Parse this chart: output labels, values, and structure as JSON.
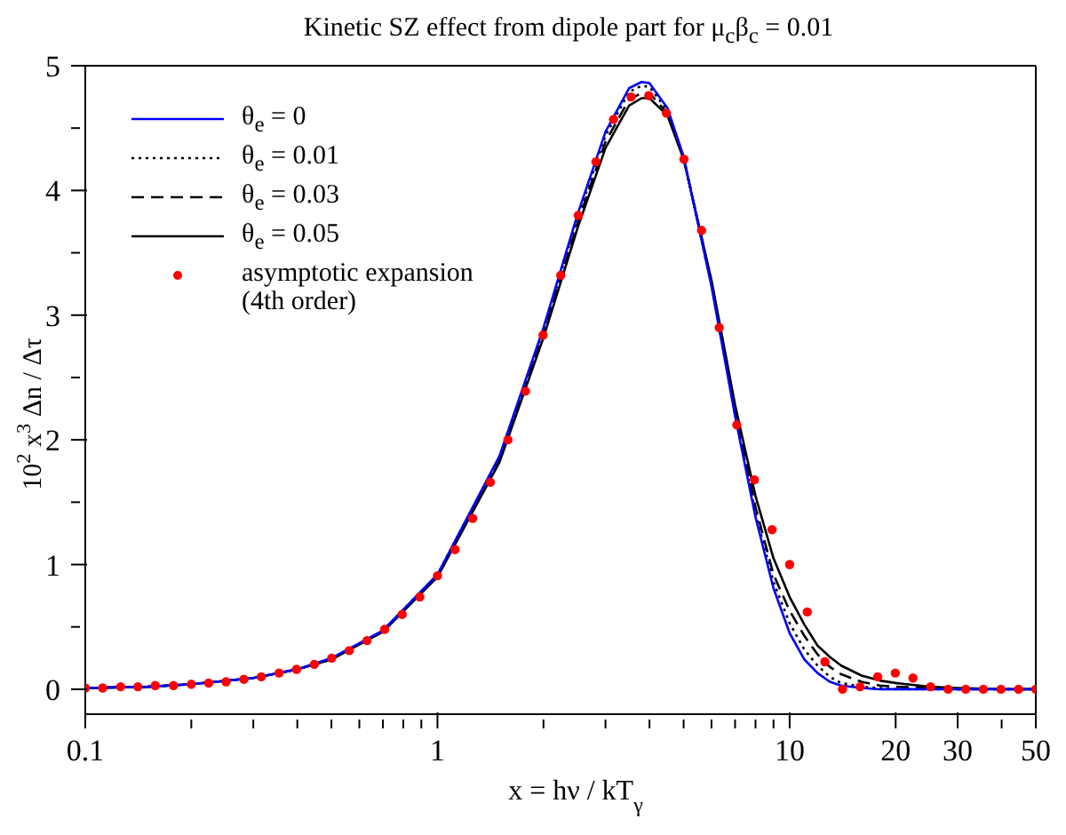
{
  "chart_data": {
    "type": "line",
    "title": "Kinetic SZ effect from dipole part for  μ$_{c}$β$_{c}$ = 0.01",
    "xlabel": "x = hν / kT$_{γ}$",
    "ylabel": "10$^{2}$ x$^{3}$  Δn / Δτ",
    "log": "x",
    "grid": false,
    "legend": "top left",
    "xlim": [
      0.1,
      50
    ],
    "ylim": [
      -0.2,
      5
    ],
    "xticks": [
      0.1,
      {
        "value": 0.2,
        "label": null
      },
      {
        "value": 0.3,
        "label": null
      },
      {
        "value": 0.4,
        "label": null
      },
      {
        "value": 0.5,
        "label": null
      },
      {
        "value": 0.6,
        "label": null
      },
      {
        "value": 0.7,
        "label": null
      },
      {
        "value": 0.8,
        "label": null
      },
      {
        "value": 0.9,
        "label": null
      },
      1,
      {
        "value": 2,
        "label": null
      },
      {
        "value": 3,
        "label": null
      },
      {
        "value": 4,
        "label": null
      },
      {
        "value": 5,
        "label": null
      },
      {
        "value": 6,
        "label": null
      },
      {
        "value": 7,
        "label": null
      },
      {
        "value": 8,
        "label": null
      },
      {
        "value": 9,
        "label": null
      },
      10,
      20,
      30,
      {
        "value": 40,
        "label": null
      },
      50
    ],
    "yticks": [
      0,
      {
        "value": 0.5,
        "label": null
      },
      1,
      {
        "value": 1.5,
        "label": null
      },
      2,
      {
        "value": 2.5,
        "label": null
      },
      3,
      {
        "value": 3.5,
        "label": null
      },
      4,
      {
        "value": 4.5,
        "label": null
      },
      5
    ],
    "x": [
      0.1,
      0.15,
      0.2,
      0.3,
      0.4,
      0.5,
      0.7,
      1,
      1.5,
      2,
      2.5,
      3,
      3.5,
      3.8,
      4,
      4.5,
      5,
      6,
      7,
      8,
      9,
      10,
      11,
      12,
      13,
      14,
      16,
      18,
      20,
      25,
      30,
      40,
      50
    ],
    "series": [
      {
        "name": "θ$_{e}$ = 0",
        "color": "#0000ff",
        "line_style": "solid",
        "values": [
          0.01,
          0.02,
          0.04,
          0.09,
          0.16,
          0.25,
          0.47,
          0.92,
          1.87,
          2.9,
          3.81,
          4.47,
          4.82,
          4.87,
          4.86,
          4.66,
          4.27,
          3.23,
          2.19,
          1.38,
          0.81,
          0.45,
          0.24,
          0.13,
          0.06,
          0.03,
          0.01,
          0,
          0,
          0,
          0,
          0,
          0
        ]
      },
      {
        "name": "θ$_{e}$ = 0.01",
        "color": "#000000",
        "line_style": "dotted",
        "values": [
          0.01,
          0.02,
          0.04,
          0.09,
          0.16,
          0.24,
          0.47,
          0.92,
          1.86,
          2.88,
          3.78,
          4.44,
          4.79,
          4.84,
          4.83,
          4.64,
          4.27,
          3.24,
          2.21,
          1.41,
          0.86,
          0.53,
          0.32,
          0.19,
          0.1,
          0.05,
          0.02,
          0.01,
          0,
          0,
          0,
          0,
          0
        ]
      },
      {
        "name": "θ$_{e}$ = 0.03",
        "color": "#000000",
        "line_style": "dashed",
        "values": [
          0.01,
          0.02,
          0.04,
          0.09,
          0.16,
          0.24,
          0.47,
          0.91,
          1.84,
          2.85,
          3.74,
          4.39,
          4.73,
          4.78,
          4.78,
          4.62,
          4.26,
          3.26,
          2.25,
          1.46,
          0.92,
          0.63,
          0.43,
          0.28,
          0.18,
          0.12,
          0.06,
          0.03,
          0.02,
          0.01,
          0,
          0,
          0
        ]
      },
      {
        "name": "θ$_{e}$ = 0.05",
        "color": "#000000",
        "line_style": "solid",
        "values": [
          0.01,
          0.02,
          0.04,
          0.09,
          0.16,
          0.24,
          0.46,
          0.9,
          1.82,
          2.82,
          3.7,
          4.34,
          4.68,
          4.74,
          4.74,
          4.6,
          4.25,
          3.28,
          2.28,
          1.55,
          1.05,
          0.74,
          0.52,
          0.35,
          0.26,
          0.19,
          0.11,
          0.07,
          0.05,
          0.02,
          0.01,
          0,
          0
        ]
      },
      {
        "name": "asymptotic expansion\n(4th order)",
        "type": "scatter",
        "marker": "circle",
        "color": "#ff0000",
        "x": [
          0.1,
          0.112,
          0.126,
          0.141,
          0.158,
          0.178,
          0.2,
          0.224,
          0.251,
          0.282,
          0.316,
          0.355,
          0.398,
          0.447,
          0.501,
          0.562,
          0.631,
          0.708,
          0.794,
          0.891,
          1,
          1.122,
          1.259,
          1.413,
          1.585,
          1.778,
          1.995,
          2.239,
          2.512,
          2.818,
          3.162,
          3.548,
          3.981,
          4.467,
          5.012,
          5.623,
          6.31,
          7.079,
          7.943,
          8.913,
          10,
          11.22,
          12.59,
          14.13,
          15.85,
          17.78,
          19.95,
          22.39,
          25.12,
          28.18,
          31.62,
          35.48,
          39.81,
          44.67,
          50
        ],
        "values": [
          0.01,
          0.01,
          0.02,
          0.02,
          0.03,
          0.03,
          0.04,
          0.05,
          0.06,
          0.08,
          0.1,
          0.13,
          0.16,
          0.2,
          0.25,
          0.31,
          0.39,
          0.48,
          0.6,
          0.74,
          0.91,
          1.12,
          1.37,
          1.66,
          2,
          2.39,
          2.84,
          3.32,
          3.8,
          4.23,
          4.57,
          4.75,
          4.76,
          4.62,
          4.25,
          3.68,
          2.9,
          2.12,
          1.68,
          1.28,
          1,
          0.62,
          0.22,
          0,
          0.02,
          0.1,
          0.13,
          0.09,
          0.02,
          0,
          0,
          0,
          0,
          0,
          0
        ]
      }
    ]
  }
}
